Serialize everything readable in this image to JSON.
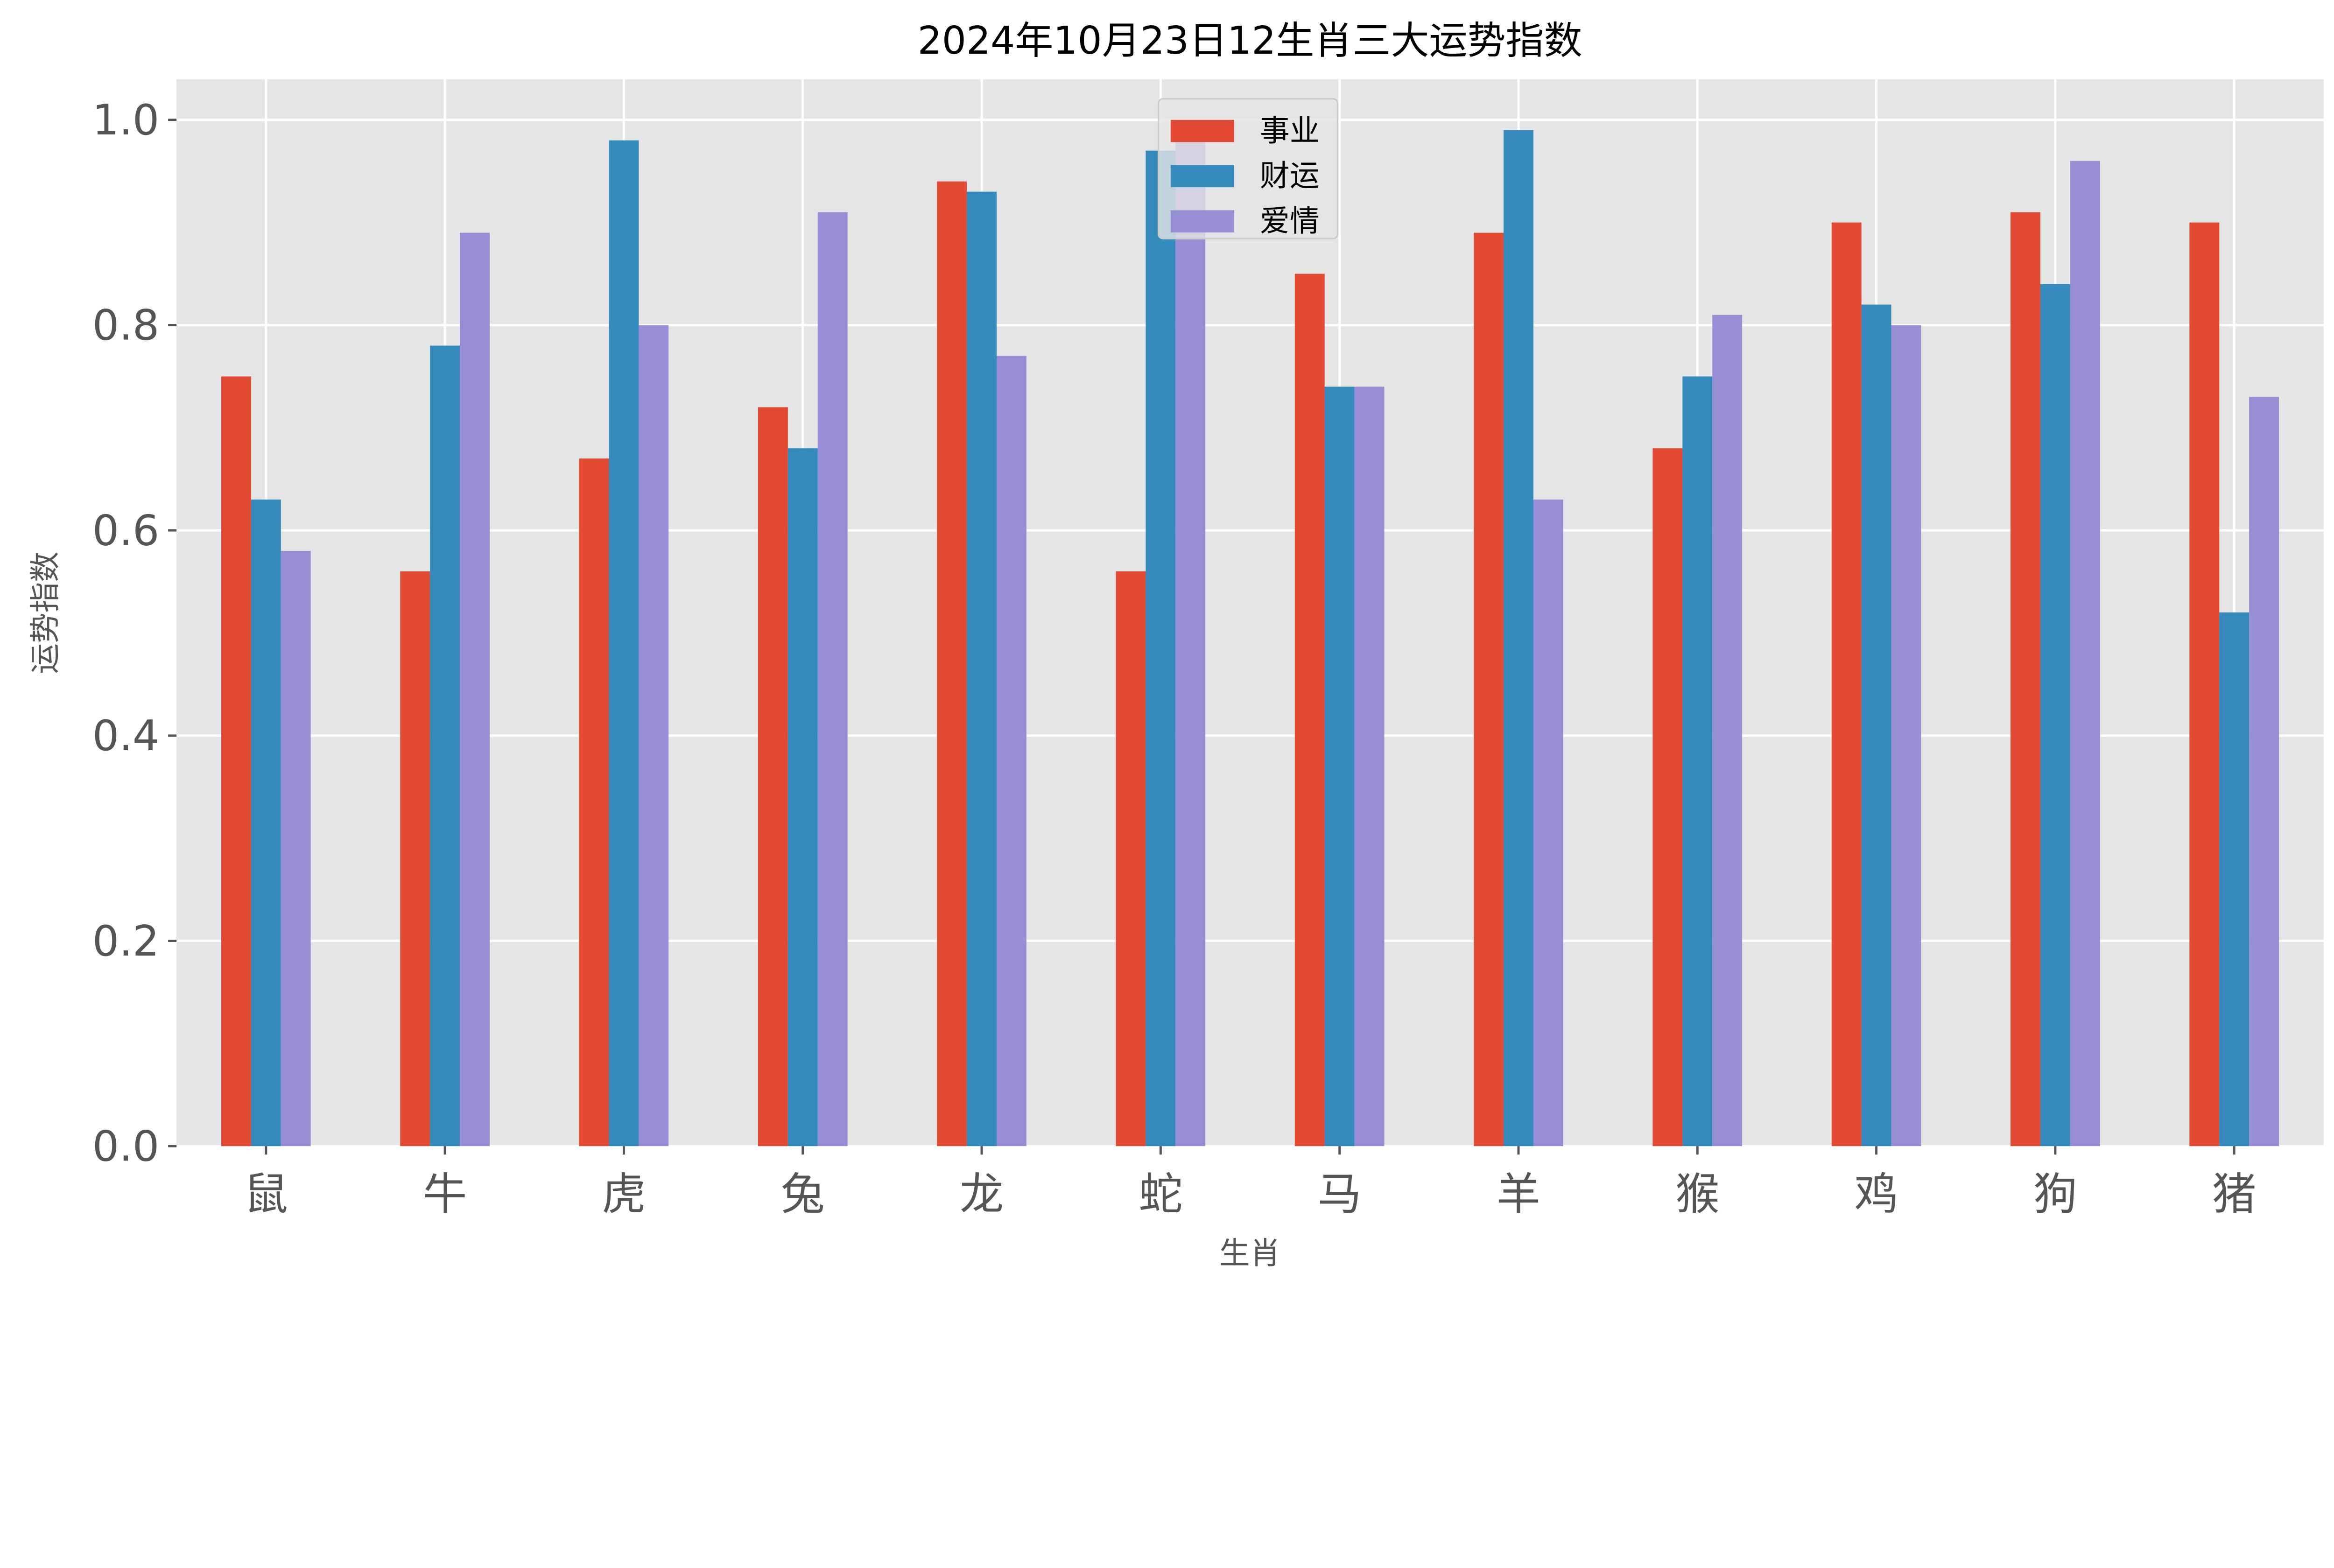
{
  "chart_data": {
    "type": "bar",
    "title": "2024年10月23日12生肖三大运势指数",
    "xlabel": "生肖",
    "ylabel": "运势指数",
    "ylim": [
      0,
      1.04
    ],
    "yticks": [
      "0.0",
      "0.2",
      "0.4",
      "0.6",
      "0.8",
      "1.0"
    ],
    "grid": true,
    "legend_position": "top-center",
    "categories": [
      "鼠",
      "牛",
      "虎",
      "兔",
      "龙",
      "蛇",
      "马",
      "羊",
      "猴",
      "鸡",
      "狗",
      "猪"
    ],
    "series": [
      {
        "name": "事业",
        "color": "#E24A33",
        "values": [
          0.75,
          0.56,
          0.67,
          0.72,
          0.94,
          0.56,
          0.85,
          0.89,
          0.68,
          0.9,
          0.91,
          0.9
        ]
      },
      {
        "name": "财运",
        "color": "#348ABD",
        "values": [
          0.63,
          0.78,
          0.98,
          0.68,
          0.93,
          0.97,
          0.74,
          0.99,
          0.75,
          0.82,
          0.84,
          0.52
        ]
      },
      {
        "name": "爱情",
        "color": "#988ED5",
        "values": [
          0.58,
          0.89,
          0.8,
          0.91,
          0.77,
          0.98,
          0.74,
          0.63,
          0.81,
          0.8,
          0.96,
          0.73
        ]
      }
    ]
  }
}
